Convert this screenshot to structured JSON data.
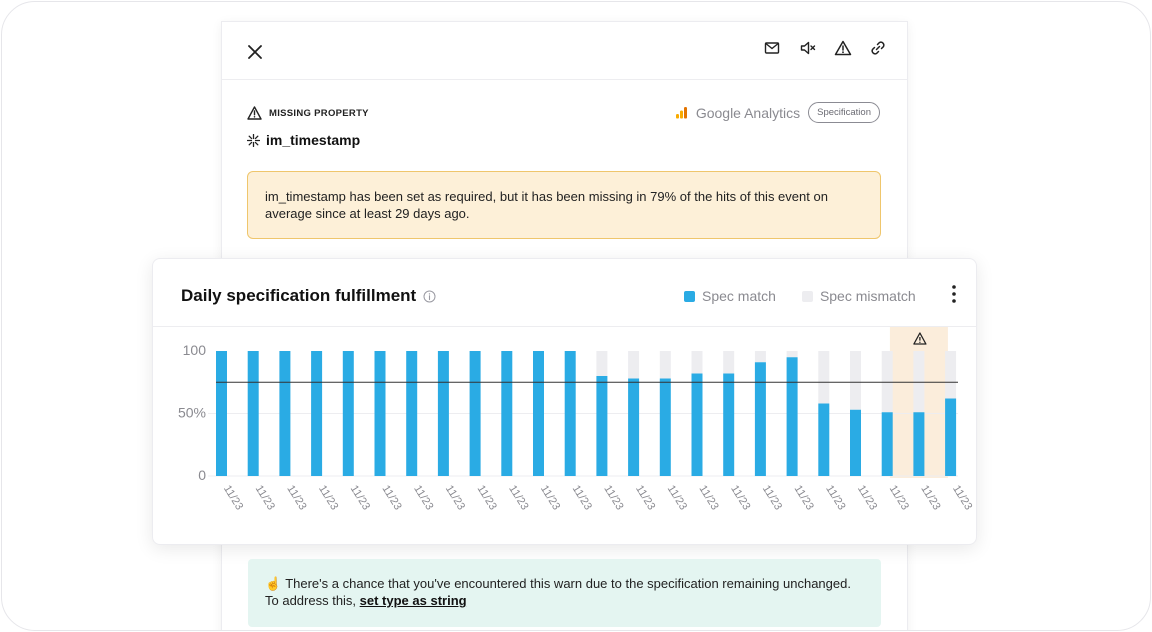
{
  "header": {
    "icons": [
      "close-icon",
      "email-icon",
      "mute-icon",
      "alert-icon",
      "link-icon"
    ]
  },
  "issue": {
    "type_label": "MISSING PROPERTY",
    "property_name": "im_timestamp",
    "source": "Google Analytics",
    "spec_tag": "Specification",
    "warning_text": "im_timestamp has been set as required, but it has been missing in 79% of the hits of this event on average since at least 29 days ago."
  },
  "card": {
    "title": "Daily specification fulfillment",
    "legend": {
      "match_label": "Spec match",
      "mismatch_label": "Spec mismatch"
    }
  },
  "colors": {
    "match": "#2aabe4",
    "mismatch": "#ededf0",
    "highlight": "#fbeddb",
    "warning_bg": "#fdf0d8",
    "note_bg": "#e4f5f1"
  },
  "chart_data": {
    "type": "bar",
    "stacked": true,
    "x": [
      "11/23",
      "11/23",
      "11/23",
      "11/23",
      "11/23",
      "11/23",
      "11/23",
      "11/23",
      "11/23",
      "11/23",
      "11/23",
      "11/23",
      "11/23",
      "11/23",
      "11/23",
      "11/23",
      "11/23",
      "11/23",
      "11/23",
      "11/23",
      "11/23",
      "11/23",
      "11/23",
      "11/23"
    ],
    "series": [
      {
        "name": "Spec match",
        "values": [
          100,
          100,
          100,
          100,
          100,
          100,
          100,
          100,
          100,
          100,
          100,
          100,
          80,
          78,
          78,
          82,
          82,
          91,
          95,
          58,
          53,
          51,
          51,
          62
        ]
      },
      {
        "name": "Spec mismatch",
        "values": [
          0,
          0,
          0,
          0,
          0,
          0,
          0,
          0,
          0,
          0,
          0,
          0,
          20,
          22,
          22,
          18,
          18,
          9,
          5,
          42,
          47,
          49,
          49,
          38
        ]
      }
    ],
    "y_ticks": [
      "100",
      "50%",
      "0"
    ],
    "ylim": [
      0,
      100
    ],
    "threshold": 75,
    "highlighted_index": 22
  },
  "note": {
    "emoji": "☝",
    "text": "There's a chance that you've encountered this warn due to the specification remaining unchanged. To address this, ",
    "link": "set type as string"
  }
}
